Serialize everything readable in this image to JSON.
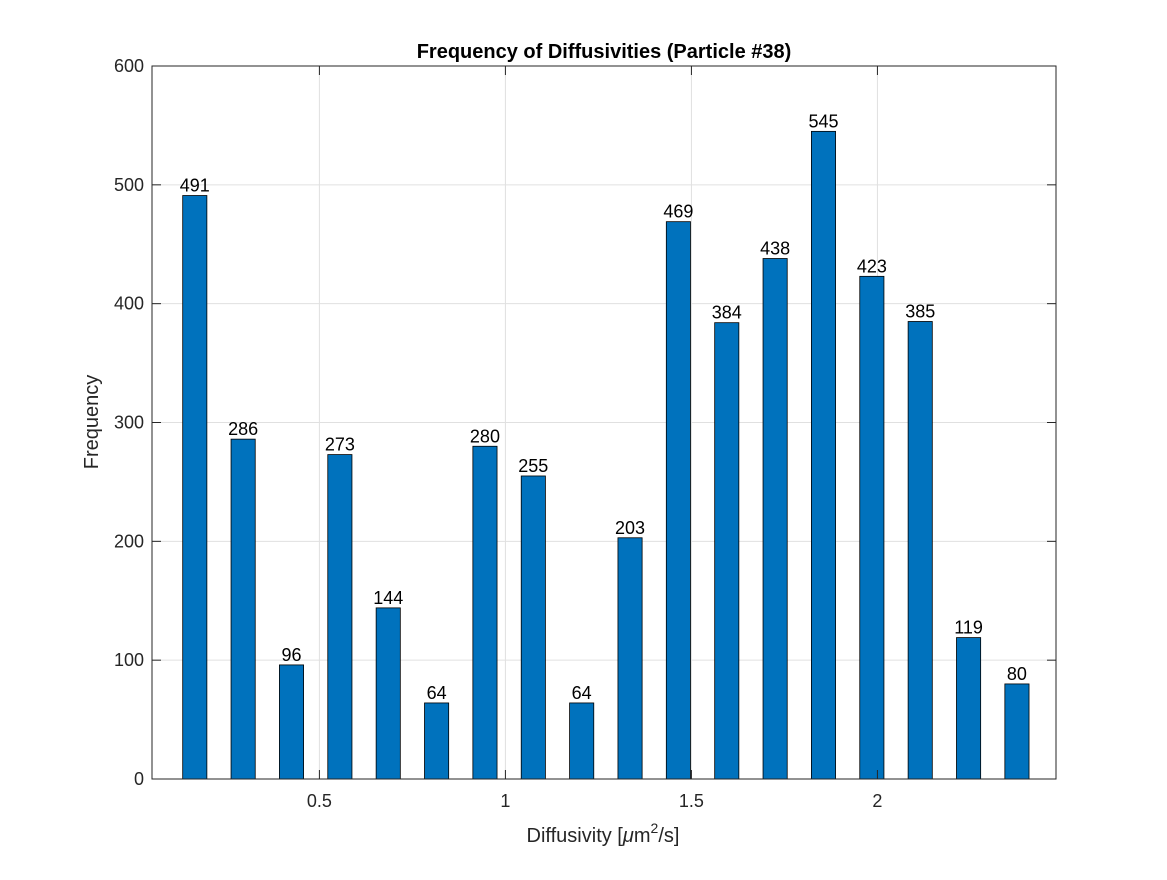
{
  "chart_data": {
    "type": "bar",
    "title": "Frequency of Diffusivities (Particle #38)",
    "xlabel_prefix": "Diffusivity [",
    "xlabel_mu": "μ",
    "xlabel_unit": "m",
    "xlabel_exp": "2",
    "xlabel_suffix": "/s]",
    "ylabel": "Frequency",
    "x": [
      0.165,
      0.295,
      0.425,
      0.555,
      0.685,
      0.815,
      0.945,
      1.075,
      1.205,
      1.335,
      1.465,
      1.595,
      1.725,
      1.855,
      1.985,
      2.115,
      2.245,
      2.375
    ],
    "values": [
      491,
      286,
      96,
      273,
      144,
      64,
      280,
      255,
      64,
      203,
      469,
      384,
      438,
      545,
      423,
      385,
      119,
      80
    ],
    "data_labels": [
      "491",
      "286",
      "96",
      "273",
      "144",
      "64",
      "280",
      "255",
      "64",
      "203",
      "469",
      "384",
      "438",
      "545",
      "423",
      "385",
      "119",
      "80"
    ],
    "xlim": [
      0.05,
      2.48
    ],
    "ylim": [
      0,
      600
    ],
    "x_ticks": [
      0.5,
      1,
      1.5,
      2
    ],
    "x_tick_labels": [
      "0.5",
      "1",
      "1.5",
      "2"
    ],
    "y_ticks": [
      0,
      100,
      200,
      300,
      400,
      500,
      600
    ],
    "y_tick_labels": [
      "0",
      "100",
      "200",
      "300",
      "400",
      "500",
      "600"
    ],
    "bar_width": 0.065,
    "grid": true,
    "colors": {
      "bar_fill": "#0072BD",
      "bar_edge": "#000000",
      "grid": "#e0e0e0",
      "axis": "#262626",
      "text": "#000000"
    }
  }
}
